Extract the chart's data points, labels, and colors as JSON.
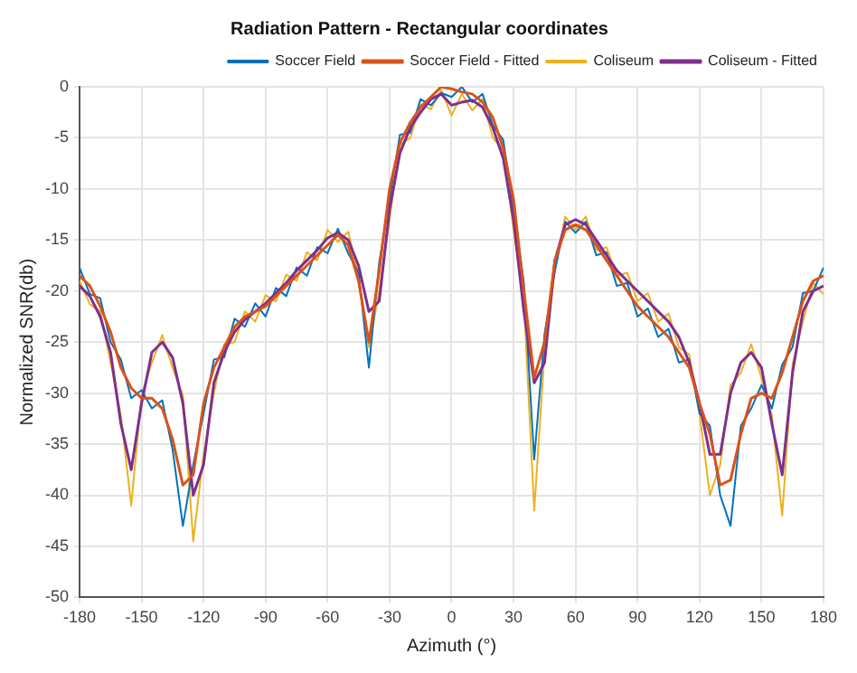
{
  "chart_data": {
    "type": "line",
    "title": "Radiation Pattern - Rectangular coordinates",
    "xlabel": "Azimuth (°)",
    "ylabel": "Normalized SNR(db)",
    "x": [
      -180,
      -175,
      -170,
      -165,
      -160,
      -155,
      -150,
      -145,
      -140,
      -135,
      -130,
      -125,
      -120,
      -115,
      -110,
      -105,
      -100,
      -95,
      -90,
      -85,
      -80,
      -75,
      -70,
      -65,
      -60,
      -55,
      -50,
      -45,
      -40,
      -35,
      -30,
      -25,
      -20,
      -15,
      -10,
      -5,
      0,
      5,
      10,
      15,
      20,
      25,
      30,
      35,
      40,
      45,
      50,
      55,
      60,
      65,
      70,
      75,
      80,
      85,
      90,
      95,
      100,
      105,
      110,
      115,
      120,
      125,
      130,
      135,
      140,
      145,
      150,
      155,
      160,
      165,
      170,
      175,
      180
    ],
    "series": [
      {
        "name": "Soccer Field",
        "color": "#0072bd",
        "values": [
          -17.7,
          -20.3,
          -20.7,
          -25,
          -26.7,
          -30.5,
          -29.7,
          -31.5,
          -30.7,
          -35.5,
          -43,
          -37,
          -32,
          -26.7,
          -26.5,
          -22.7,
          -23.5,
          -21.2,
          -22.5,
          -19.7,
          -20.5,
          -17.7,
          -18.5,
          -15.7,
          -16.3,
          -13.9,
          -16.3,
          -18.2,
          -27.5,
          -17.2,
          -11,
          -4.7,
          -4.5,
          -1.2,
          -1.8,
          -0.6,
          -1,
          0,
          -1.5,
          -0.7,
          -3.8,
          -5.2,
          -12,
          -19.2,
          -36.5,
          -24.2,
          -18,
          -13.2,
          -14.3,
          -13.2,
          -16.5,
          -16.2,
          -19.5,
          -19.2,
          -22.5,
          -21.7,
          -24.5,
          -23.7,
          -27,
          -26.7,
          -32,
          -33.2,
          -40,
          -43,
          -33.2,
          -31.5,
          -29.2,
          -31.5,
          -27.2,
          -25.5,
          -20.2,
          -20,
          -17.7
        ]
      },
      {
        "name": "Soccer Field - Fitted",
        "color": "#d95319",
        "values": [
          -18.5,
          -19.5,
          -21.5,
          -24,
          -27.5,
          -29.5,
          -30.5,
          -30.5,
          -31.5,
          -34.5,
          -39,
          -38,
          -31,
          -27.5,
          -25.5,
          -23.5,
          -22.5,
          -22,
          -21.5,
          -20.5,
          -19.5,
          -18.5,
          -17.5,
          -16.5,
          -15.5,
          -14.5,
          -15.5,
          -19,
          -25,
          -18,
          -10,
          -5.5,
          -3.5,
          -2,
          -1,
          0,
          -0.2,
          -0.5,
          -0.7,
          -1.5,
          -3,
          -6,
          -11,
          -20,
          -28.5,
          -25,
          -17,
          -14,
          -13.5,
          -14,
          -15.5,
          -17,
          -18.5,
          -20,
          -21.5,
          -22.5,
          -23.5,
          -24.5,
          -26,
          -27.5,
          -31,
          -34,
          -39,
          -38.5,
          -34,
          -30.5,
          -30,
          -30.5,
          -28,
          -24.5,
          -21,
          -19,
          -18.5
        ]
      },
      {
        "name": "Coliseum",
        "color": "#edb120",
        "values": [
          -19,
          -21.3,
          -22,
          -27,
          -32.2,
          -41,
          -30.2,
          -27,
          -24.3,
          -27.5,
          -30.2,
          -44.5,
          -36,
          -30,
          -25.2,
          -25,
          -22,
          -23,
          -20.4,
          -21,
          -18.4,
          -19,
          -16.2,
          -17,
          -14,
          -15.2,
          -14.2,
          -18.5,
          -25.5,
          -20,
          -13,
          -5.7,
          -5,
          -1.7,
          -2.2,
          -0.3,
          -2.8,
          -0.7,
          -2.3,
          -1.2,
          -5,
          -6.2,
          -14,
          -21,
          -41.5,
          -26,
          -18,
          -12.7,
          -14,
          -12.7,
          -16,
          -15.7,
          -18.5,
          -18.2,
          -21,
          -20.2,
          -23,
          -22.2,
          -25.5,
          -26.2,
          -32,
          -40,
          -37,
          -29.2,
          -28,
          -25.2,
          -28.5,
          -32.2,
          -42,
          -27.2,
          -23,
          -19.2,
          -20.3
        ]
      },
      {
        "name": "Coliseum - Fitted",
        "color": "#7e2f8e",
        "values": [
          -19.5,
          -20.5,
          -22.5,
          -26,
          -33,
          -37.5,
          -31,
          -26,
          -25,
          -26.5,
          -31,
          -40,
          -37,
          -29,
          -26,
          -24,
          -22.8,
          -22,
          -21.2,
          -20.2,
          -19.2,
          -18,
          -17,
          -16,
          -14.8,
          -14.3,
          -15,
          -17.5,
          -22,
          -21,
          -12,
          -6.5,
          -4,
          -2.5,
          -1.2,
          -0.7,
          -1.8,
          -1.5,
          -1.3,
          -2,
          -4,
          -7,
          -13,
          -22,
          -29,
          -27,
          -17,
          -13.5,
          -13,
          -13.5,
          -15,
          -16.5,
          -18,
          -19,
          -20,
          -21,
          -22,
          -23,
          -24.5,
          -27,
          -31,
          -36,
          -36,
          -30,
          -27,
          -26,
          -27.5,
          -33,
          -38,
          -28,
          -22,
          -20,
          -19.5
        ]
      }
    ],
    "xlim": [
      -180,
      180
    ],
    "xticks": [
      -180,
      -150,
      -120,
      -90,
      -60,
      -30,
      0,
      30,
      60,
      90,
      120,
      150,
      180
    ],
    "ylim": [
      -50,
      0
    ],
    "yticks": [
      -50,
      -45,
      -40,
      -35,
      -30,
      -25,
      -20,
      -15,
      -10,
      -5,
      0
    ],
    "grid": true,
    "legend": "top right",
    "marker": "none",
    "line_style": "solid"
  }
}
